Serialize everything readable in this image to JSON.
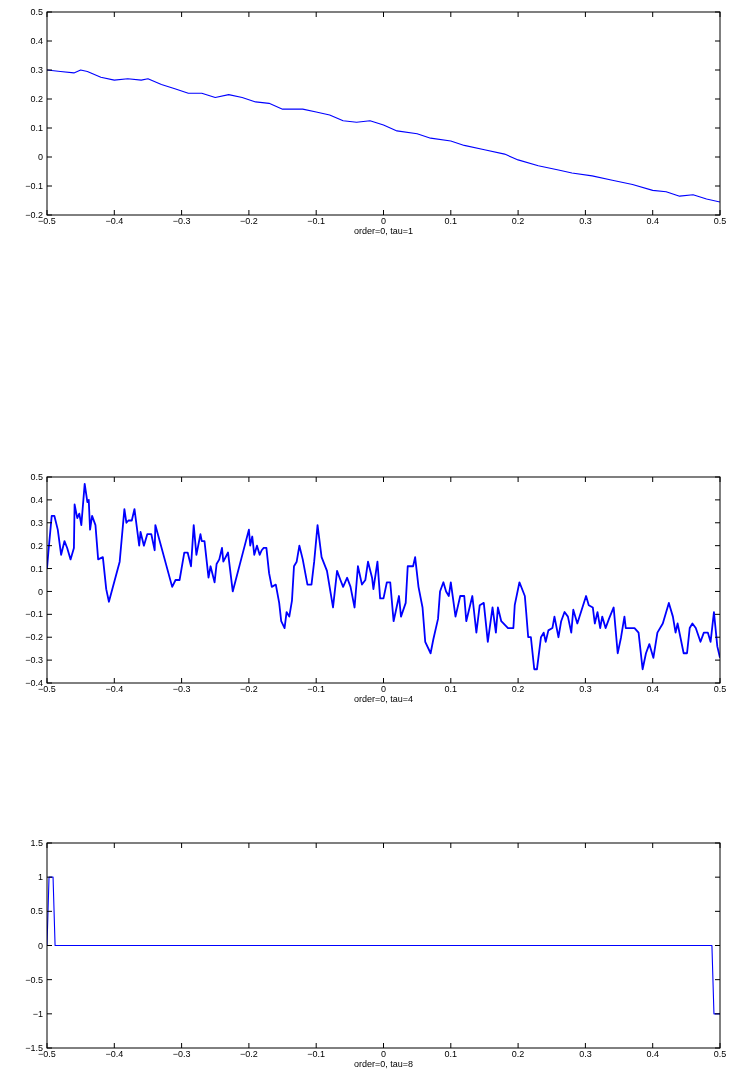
{
  "chart_data": [
    {
      "type": "line",
      "xlabel": "order=0, tau=1",
      "xlim": [
        -0.5,
        0.5
      ],
      "ylim": [
        -0.2,
        0.5
      ],
      "xticks": [
        -0.5,
        -0.4,
        -0.3,
        -0.2,
        -0.1,
        0,
        0.1,
        0.2,
        0.3,
        0.4,
        0.5
      ],
      "yticks": [
        -0.2,
        -0.1,
        0,
        0.1,
        0.2,
        0.3,
        0.4,
        0.5
      ],
      "grid": false,
      "series": [
        {
          "color": "#0000ff",
          "x": [
            -0.5,
            -0.48,
            -0.46,
            -0.45,
            -0.44,
            -0.42,
            -0.4,
            -0.38,
            -0.36,
            -0.35,
            -0.33,
            -0.31,
            -0.29,
            -0.27,
            -0.25,
            -0.23,
            -0.21,
            -0.19,
            -0.17,
            -0.15,
            -0.12,
            -0.1,
            -0.08,
            -0.06,
            -0.04,
            -0.02,
            0,
            0.02,
            0.05,
            0.07,
            0.1,
            0.12,
            0.15,
            0.18,
            0.2,
            0.23,
            0.26,
            0.28,
            0.31,
            0.34,
            0.37,
            0.4,
            0.42,
            0.44,
            0.46,
            0.48,
            0.5
          ],
          "values": [
            0.3,
            0.295,
            0.29,
            0.3,
            0.295,
            0.275,
            0.265,
            0.27,
            0.265,
            0.27,
            0.25,
            0.235,
            0.22,
            0.22,
            0.205,
            0.215,
            0.205,
            0.19,
            0.185,
            0.165,
            0.165,
            0.155,
            0.145,
            0.125,
            0.12,
            0.125,
            0.11,
            0.09,
            0.08,
            0.065,
            0.055,
            0.04,
            0.025,
            0.01,
            -0.01,
            -0.03,
            -0.045,
            -0.055,
            -0.065,
            -0.08,
            -0.095,
            -0.115,
            -0.12,
            -0.135,
            -0.13,
            -0.145,
            -0.155
          ]
        }
      ]
    },
    {
      "type": "line",
      "xlabel": "order=0, tau=4",
      "xlim": [
        -0.5,
        0.5
      ],
      "ylim": [
        -0.4,
        0.5
      ],
      "xticks": [
        -0.5,
        -0.4,
        -0.3,
        -0.2,
        -0.1,
        0,
        0.1,
        0.2,
        0.3,
        0.4,
        0.5
      ],
      "yticks": [
        -0.4,
        -0.3,
        -0.2,
        -0.1,
        0,
        0.1,
        0.2,
        0.3,
        0.4,
        0.5
      ],
      "grid": false,
      "series": [
        {
          "color": "#0000ff",
          "x": [
            -0.5,
            -0.498,
            -0.493,
            -0.489,
            -0.484,
            -0.479,
            -0.474,
            -0.47,
            -0.465,
            -0.46,
            -0.459,
            -0.455,
            -0.452,
            -0.449,
            -0.444,
            -0.44,
            -0.438,
            -0.436,
            -0.433,
            -0.428,
            -0.424,
            -0.417,
            -0.412,
            -0.408,
            -0.392,
            -0.385,
            -0.382,
            -0.379,
            -0.374,
            -0.37,
            -0.363,
            -0.361,
            -0.356,
            -0.351,
            -0.345,
            -0.34,
            -0.339,
            -0.314,
            -0.309,
            -0.303,
            -0.296,
            -0.291,
            -0.286,
            -0.282,
            -0.278,
            -0.272,
            -0.27,
            -0.266,
            -0.26,
            -0.257,
            -0.251,
            -0.248,
            -0.244,
            -0.24,
            -0.238,
            -0.231,
            -0.224,
            -0.2,
            -0.198,
            -0.195,
            -0.192,
            -0.188,
            -0.184,
            -0.181,
            -0.178,
            -0.174,
            -0.17,
            -0.166,
            -0.16,
            -0.155,
            -0.152,
            -0.147,
            -0.144,
            -0.14,
            -0.136,
            -0.133,
            -0.129,
            -0.125,
            -0.12,
            -0.113,
            -0.107,
            -0.103,
            -0.098,
            -0.092,
            -0.084,
            -0.075,
            -0.069,
            -0.064,
            -0.06,
            -0.054,
            -0.049,
            -0.043,
            -0.038,
            -0.032,
            -0.027,
            -0.023,
            -0.017,
            -0.015,
            -0.009,
            -0.005,
            0,
            0.005,
            0.01,
            0.015,
            0.018,
            0.023,
            0.026,
            0.033,
            0.036,
            0.044,
            0.047,
            0.052,
            0.058,
            0.062,
            0.07,
            0.074,
            0.081,
            0.084,
            0.089,
            0.093,
            0.097,
            0.1,
            0.107,
            0.114,
            0.12,
            0.123,
            0.132,
            0.138,
            0.143,
            0.149,
            0.155,
            0.162,
            0.167,
            0.17,
            0.175,
            0.185,
            0.193,
            0.195,
            0.202,
            0.21,
            0.212,
            0.215,
            0.219,
            0.224,
            0.228,
            0.234,
            0.238,
            0.241,
            0.245,
            0.251,
            0.254,
            0.26,
            0.264,
            0.269,
            0.274,
            0.279,
            0.282,
            0.288,
            0.301,
            0.305,
            0.311,
            0.314,
            0.318,
            0.322,
            0.325,
            0.33,
            0.335,
            0.342,
            0.348,
            0.353,
            0.358,
            0.36,
            0.373,
            0.379,
            0.385,
            0.39,
            0.395,
            0.401,
            0.407,
            0.415,
            0.424,
            0.43,
            0.434,
            0.437,
            0.446,
            0.451,
            0.455,
            0.459,
            0.464,
            0.471,
            0.476,
            0.482,
            0.486,
            0.491,
            0.496,
            0.5
          ],
          "values": [
            0.1,
            0.17,
            0.33,
            0.33,
            0.27,
            0.16,
            0.22,
            0.19,
            0.14,
            0.19,
            0.38,
            0.32,
            0.34,
            0.29,
            0.47,
            0.39,
            0.4,
            0.27,
            0.33,
            0.29,
            0.14,
            0.15,
            0.01,
            -0.045,
            0.13,
            0.36,
            0.3,
            0.31,
            0.31,
            0.36,
            0.2,
            0.26,
            0.2,
            0.25,
            0.25,
            0.18,
            0.29,
            0.02,
            0.05,
            0.05,
            0.17,
            0.17,
            0.11,
            0.29,
            0.16,
            0.25,
            0.22,
            0.22,
            0.06,
            0.11,
            0.04,
            0.12,
            0.14,
            0.19,
            0.13,
            0.17,
            0,
            0.27,
            0.2,
            0.24,
            0.16,
            0.2,
            0.16,
            0.18,
            0.19,
            0.19,
            0.08,
            0.02,
            0.03,
            -0.05,
            -0.13,
            -0.16,
            -0.09,
            -0.11,
            -0.04,
            0.11,
            0.13,
            0.2,
            0.14,
            0.03,
            0.03,
            0.13,
            0.29,
            0.15,
            0.09,
            -0.07,
            0.09,
            0.05,
            0.02,
            0.06,
            0.02,
            -0.07,
            0.11,
            0.03,
            0.05,
            0.13,
            0.06,
            0.01,
            0.13,
            -0.03,
            -0.03,
            0.04,
            0.04,
            -0.13,
            -0.09,
            -0.02,
            -0.11,
            -0.05,
            0.11,
            0.11,
            0.15,
            0.02,
            -0.07,
            -0.22,
            -0.27,
            -0.21,
            -0.12,
            0,
            0.04,
            0,
            -0.02,
            0.04,
            -0.11,
            -0.02,
            -0.02,
            -0.13,
            -0.02,
            -0.18,
            -0.06,
            -0.05,
            -0.22,
            -0.07,
            -0.18,
            -0.07,
            -0.13,
            -0.16,
            -0.16,
            -0.06,
            0.04,
            -0.02,
            -0.09,
            -0.2,
            -0.2,
            -0.34,
            -0.34,
            -0.2,
            -0.18,
            -0.22,
            -0.17,
            -0.16,
            -0.11,
            -0.2,
            -0.13,
            -0.09,
            -0.11,
            -0.18,
            -0.08,
            -0.14,
            -0.02,
            -0.06,
            -0.07,
            -0.14,
            -0.09,
            -0.16,
            -0.11,
            -0.16,
            -0.12,
            -0.07,
            -0.27,
            -0.2,
            -0.11,
            -0.16,
            -0.16,
            -0.18,
            -0.34,
            -0.27,
            -0.23,
            -0.29,
            -0.18,
            -0.14,
            -0.05,
            -0.11,
            -0.18,
            -0.14,
            -0.27,
            -0.27,
            -0.16,
            -0.14,
            -0.16,
            -0.22,
            -0.18,
            -0.18,
            -0.22,
            -0.09,
            -0.24,
            -0.29
          ]
        }
      ]
    },
    {
      "type": "line",
      "xlabel": "order=0, tau=8",
      "xlim": [
        -0.5,
        0.5
      ],
      "ylim": [
        -1.5,
        1.5
      ],
      "xticks": [
        -0.5,
        -0.4,
        -0.3,
        -0.2,
        -0.1,
        0,
        0.1,
        0.2,
        0.3,
        0.4,
        0.5
      ],
      "yticks": [
        -1.5,
        -1,
        -0.5,
        0,
        0.5,
        1,
        1.5
      ],
      "grid": false,
      "series": [
        {
          "color": "#0000ff",
          "x": [
            -0.5,
            -0.497,
            -0.491,
            -0.488,
            0.488,
            0.491,
            0.5
          ],
          "values": [
            0,
            1,
            1,
            0,
            0,
            -1,
            -1
          ]
        }
      ]
    }
  ]
}
